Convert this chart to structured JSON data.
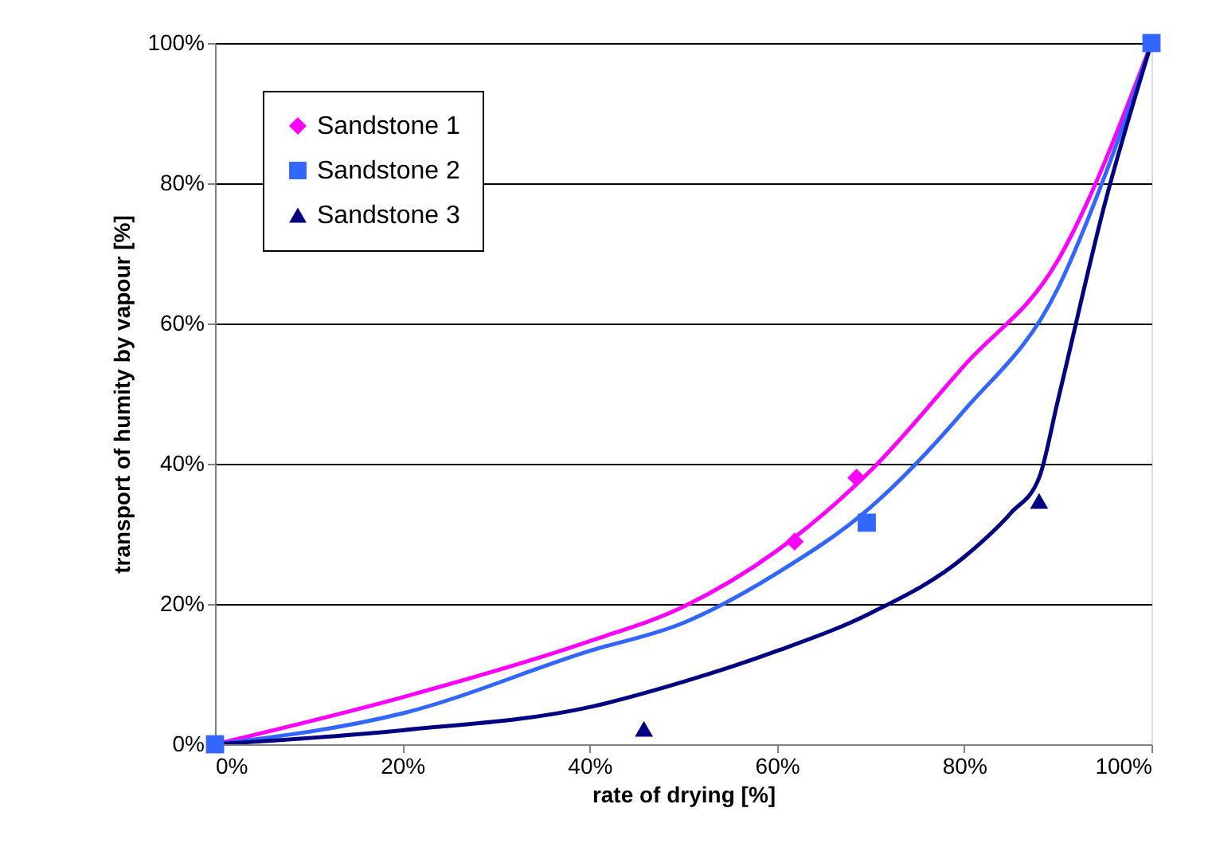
{
  "chart_data": {
    "type": "scatter",
    "xlabel": "rate of drying [%]",
    "ylabel": "transport of humity by vapour [%]",
    "xlim": [
      0,
      100
    ],
    "ylim": [
      0,
      100
    ],
    "xticks": [
      {
        "value": 0,
        "label": "0%"
      },
      {
        "value": 20,
        "label": "20%"
      },
      {
        "value": 40,
        "label": "40%"
      },
      {
        "value": 60,
        "label": "60%"
      },
      {
        "value": 80,
        "label": "80%"
      },
      {
        "value": 100,
        "label": "100%"
      }
    ],
    "yticks": [
      {
        "value": 0,
        "label": "0%"
      },
      {
        "value": 20,
        "label": "20%"
      },
      {
        "value": 40,
        "label": "40%"
      },
      {
        "value": 60,
        "label": "60%"
      },
      {
        "value": 80,
        "label": "80%"
      },
      {
        "value": 100,
        "label": "100%"
      }
    ],
    "grid": "y",
    "legend": "top left",
    "series": [
      {
        "name": "Sandstone 1",
        "marker": "diamond",
        "color": "#ff00ff",
        "x": [
          61.9,
          68.5
        ],
        "values": [
          28.9,
          38.0
        ]
      },
      {
        "name": "Sandstone 2",
        "marker": "square",
        "color": "#3366ff",
        "x": [
          0,
          69.6,
          100
        ],
        "values": [
          0,
          31.6,
          100
        ]
      },
      {
        "name": "Sandstone 3",
        "marker": "triangle",
        "color": "#000080",
        "x": [
          45.8,
          88
        ],
        "values": [
          2.2,
          34.7
        ]
      },
      {
        "type": "line",
        "line_style": "solid",
        "color": "#ff00ff",
        "x": [
          0,
          20,
          40,
          50,
          60,
          70,
          80,
          90,
          100
        ],
        "values": [
          0,
          6.7,
          14.7,
          19.6,
          27.6,
          39,
          54,
          69,
          100
        ]
      },
      {
        "type": "line",
        "line_style": "solid",
        "color": "#3366ff",
        "x": [
          0,
          20,
          40,
          50,
          60,
          70,
          80,
          90,
          95,
          100
        ],
        "values": [
          0,
          4.4,
          13.3,
          17.3,
          24.4,
          33.8,
          47.6,
          65,
          81,
          100
        ]
      },
      {
        "type": "line",
        "line_style": "solid",
        "color": "#000080",
        "x": [
          0,
          20,
          40,
          50,
          60,
          70,
          80,
          85,
          88,
          90,
          95,
          100
        ],
        "values": [
          0,
          2,
          5.3,
          8.9,
          13.3,
          18.7,
          26.7,
          33,
          38,
          49,
          77,
          100
        ]
      }
    ]
  }
}
